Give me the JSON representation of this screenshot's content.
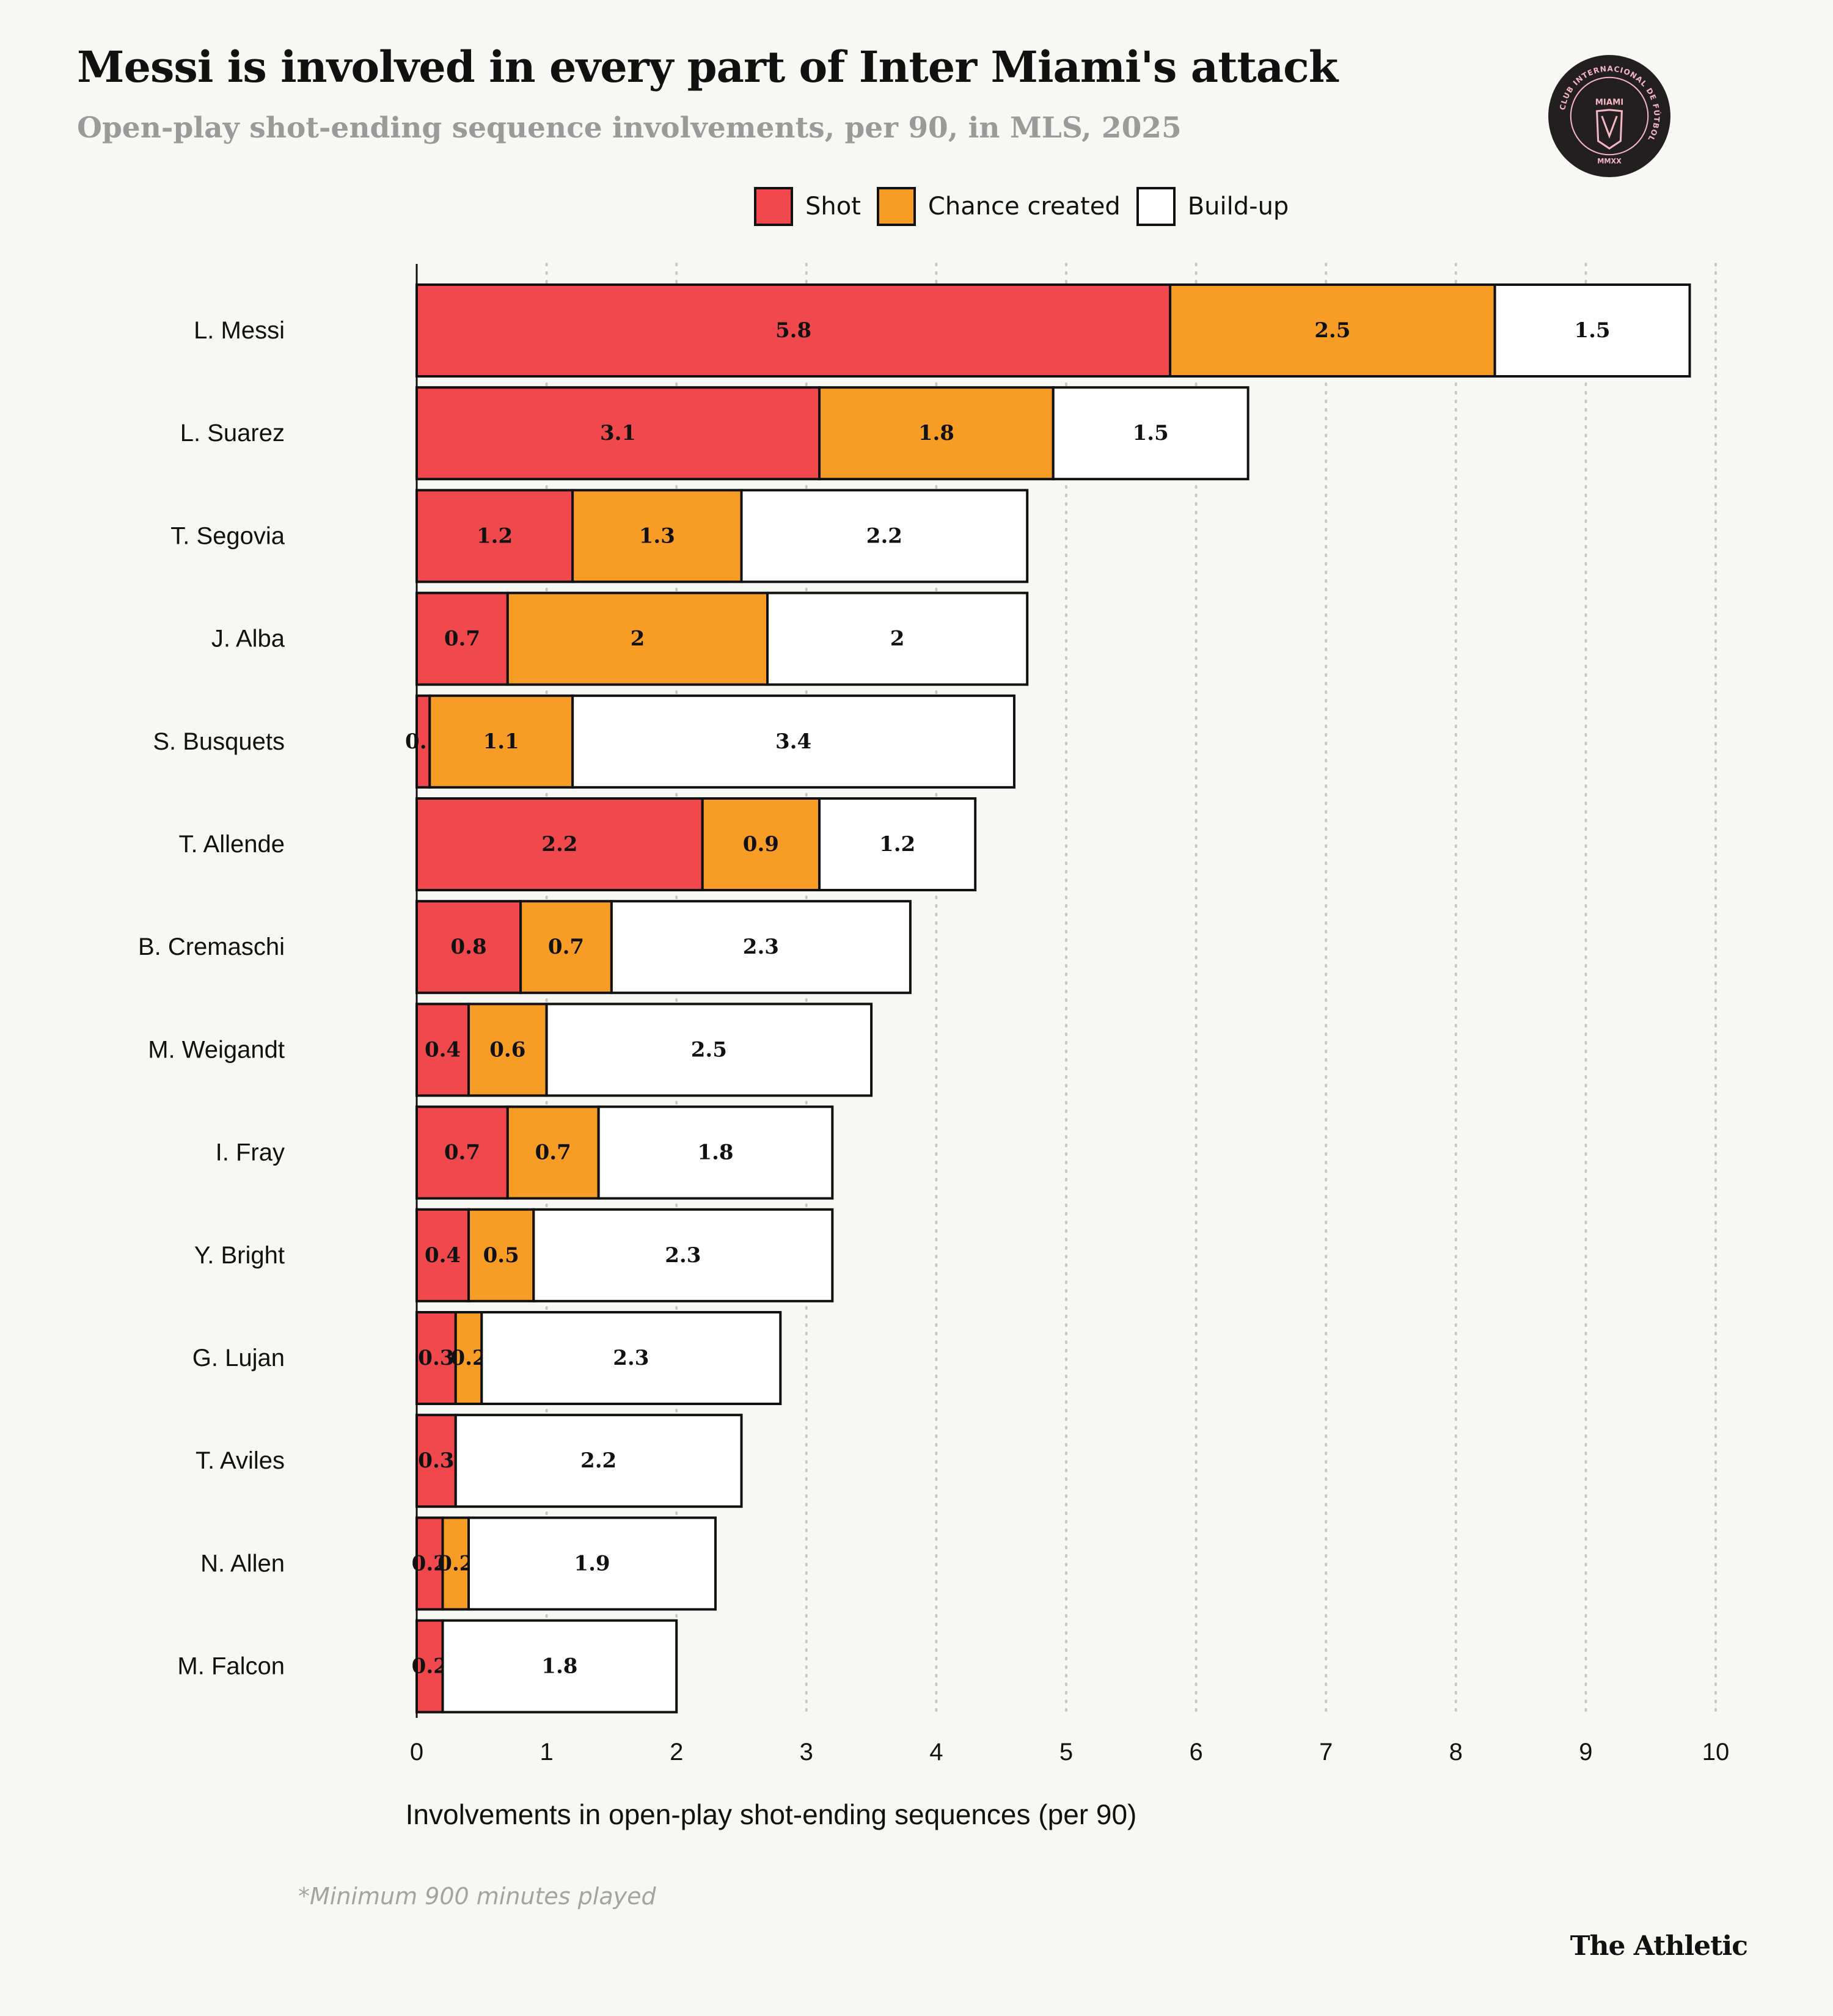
{
  "header": {
    "title": "Messi is involved in every part of Inter Miami's attack",
    "subtitle": "Open-play shot-ending sequence involvements, per 90, in MLS, 2025"
  },
  "logo": {
    "icon": "inter-miami-crest-icon",
    "ring_text": "CLUB INTERNACIONAL DE FÚTBOL",
    "name": "MIAMI",
    "year": "MMXX"
  },
  "legend": [
    {
      "label": "Shot",
      "color": "#f0484d"
    },
    {
      "label": "Chance created",
      "color": "#f79c24"
    },
    {
      "label": "Build-up",
      "color": "#ffffff"
    }
  ],
  "chart_data": {
    "type": "bar",
    "orientation": "horizontal",
    "stacked": true,
    "categories": [
      "L. Messi",
      "L. Suarez",
      "T. Segovia",
      "J. Alba",
      "S. Busquets",
      "T. Allende",
      "B. Cremaschi",
      "M. Weigandt",
      "I. Fray",
      "Y. Bright",
      "G. Lujan",
      "T. Aviles",
      "N. Allen",
      "M. Falcon"
    ],
    "series": [
      {
        "name": "Shot",
        "color": "#f0484d",
        "values": [
          5.8,
          3.1,
          1.2,
          0.7,
          0.1,
          2.2,
          0.8,
          0.4,
          0.7,
          0.4,
          0.3,
          0.3,
          0.2,
          0.2
        ]
      },
      {
        "name": "Chance created",
        "color": "#f79c24",
        "values": [
          2.5,
          1.8,
          1.3,
          2,
          1.1,
          0.9,
          0.7,
          0.6,
          0.7,
          0.5,
          0.2,
          0,
          0.2,
          0
        ]
      },
      {
        "name": "Build-up",
        "color": "#ffffff",
        "values": [
          1.5,
          1.5,
          2.2,
          2,
          3.4,
          1.2,
          2.3,
          2.5,
          1.8,
          2.3,
          2.3,
          2.2,
          1.9,
          1.8
        ]
      }
    ],
    "xlabel": "Involvements in open-play shot-ending sequences (per 90)",
    "xlim": [
      0,
      10
    ],
    "xticks": [
      0,
      1,
      2,
      3,
      4,
      5,
      6,
      7,
      8,
      9,
      10
    ],
    "grid": "vertical dotted"
  },
  "footnote": "*Minimum 900 minutes played",
  "brand": "The Athletic"
}
